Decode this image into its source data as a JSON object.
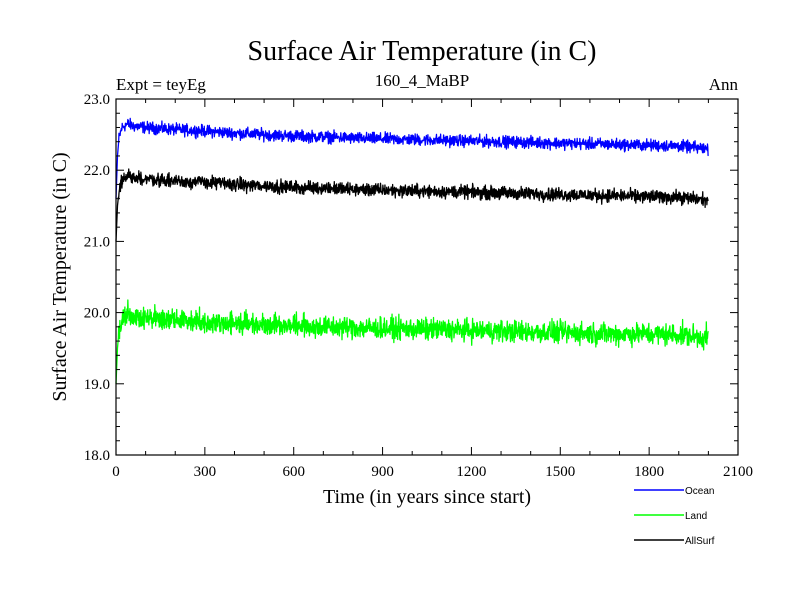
{
  "chart_data": {
    "type": "line",
    "title": "Surface Air Temperature (in C)",
    "subtitle_left": "Expt = teyEg",
    "subtitle_center": "160_4_MaBP",
    "subtitle_right": "Ann",
    "xlabel": "Time (in years since start)",
    "ylabel": "Surface Air Temperature (in C)",
    "xlim": [
      0,
      2100
    ],
    "ylim": [
      18.0,
      23.0
    ],
    "x_ticks": [
      0,
      300,
      600,
      900,
      1200,
      1500,
      1800,
      2100
    ],
    "x_tick_labels": [
      "0",
      "300",
      "600",
      "900",
      "1200",
      "1500",
      "1800",
      "2100"
    ],
    "y_ticks": [
      18.0,
      19.0,
      20.0,
      21.0,
      22.0,
      23.0
    ],
    "y_tick_labels": [
      "18.0",
      "19.0",
      "20.0",
      "21.0",
      "22.0",
      "23.0"
    ],
    "grid": false,
    "legend_position": "bottom-right, below plot",
    "series": [
      {
        "name": "Ocean",
        "color": "#0000ff",
        "x": [
          0,
          5,
          10,
          20,
          40,
          60,
          100,
          200,
          300,
          400,
          500,
          600,
          700,
          800,
          900,
          1000,
          1100,
          1200,
          1300,
          1400,
          1500,
          1600,
          1700,
          1800,
          1900,
          2000
        ],
        "values": [
          21.6,
          22.2,
          22.45,
          22.6,
          22.65,
          22.62,
          22.6,
          22.57,
          22.55,
          22.52,
          22.5,
          22.48,
          22.47,
          22.45,
          22.44,
          22.43,
          22.42,
          22.41,
          22.4,
          22.39,
          22.38,
          22.37,
          22.36,
          22.35,
          22.34,
          22.3
        ],
        "noise_amplitude": 0.08
      },
      {
        "name": "Land",
        "color": "#00ff00",
        "x": [
          0,
          5,
          10,
          20,
          40,
          60,
          100,
          200,
          300,
          400,
          500,
          600,
          700,
          800,
          900,
          1000,
          1100,
          1200,
          1300,
          1400,
          1500,
          1600,
          1700,
          1800,
          1900,
          2000
        ],
        "values": [
          19.0,
          19.5,
          19.75,
          19.9,
          19.98,
          19.95,
          19.92,
          19.9,
          19.87,
          19.85,
          19.84,
          19.82,
          19.8,
          19.79,
          19.78,
          19.77,
          19.76,
          19.75,
          19.74,
          19.73,
          19.72,
          19.71,
          19.7,
          19.7,
          19.69,
          19.65
        ],
        "noise_amplitude": 0.15
      },
      {
        "name": "AllSurf",
        "color": "#000000",
        "x": [
          0,
          5,
          10,
          20,
          40,
          60,
          100,
          200,
          300,
          400,
          500,
          600,
          700,
          800,
          900,
          1000,
          1100,
          1200,
          1300,
          1400,
          1500,
          1600,
          1700,
          1800,
          1900,
          2000
        ],
        "values": [
          21.0,
          21.5,
          21.7,
          21.85,
          21.92,
          21.9,
          21.88,
          21.85,
          21.83,
          21.8,
          21.78,
          21.76,
          21.75,
          21.73,
          21.72,
          21.71,
          21.7,
          21.69,
          21.68,
          21.67,
          21.66,
          21.65,
          21.64,
          21.63,
          21.62,
          21.58
        ],
        "noise_amplitude": 0.09
      }
    ]
  }
}
